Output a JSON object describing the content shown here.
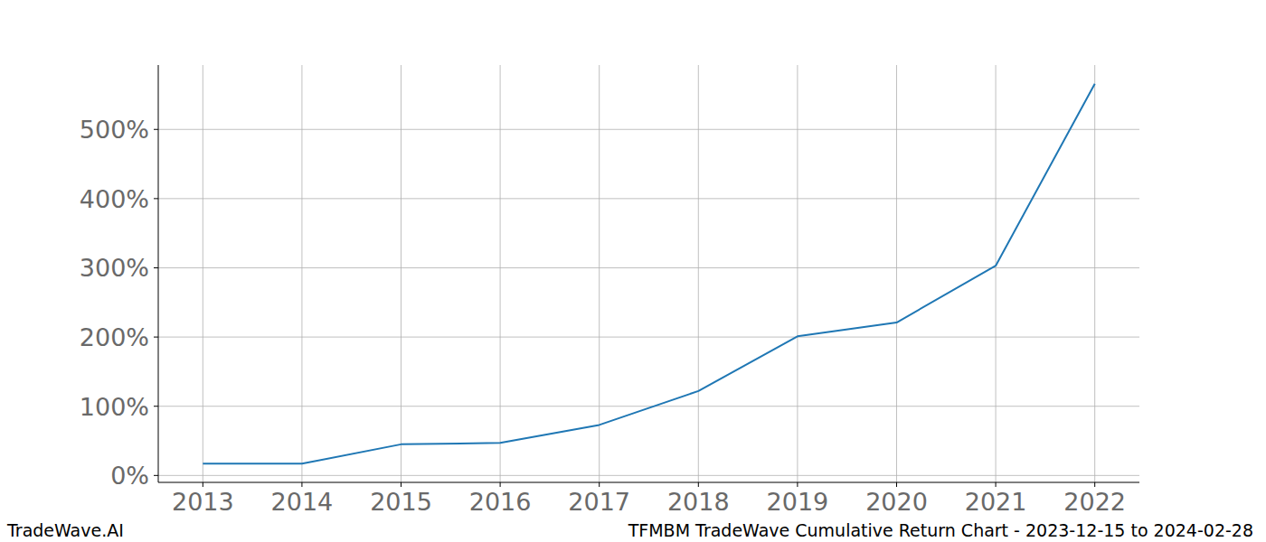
{
  "chart_data": {
    "type": "line",
    "title": "TFMBM TradeWave Cumulative Return Chart - 2023-12-15 to 2024-02-28",
    "watermark": "TradeWave.AI",
    "x": [
      2013,
      2014,
      2015,
      2016,
      2017,
      2018,
      2019,
      2020,
      2021,
      2022
    ],
    "series": [
      {
        "name": "TFMBM",
        "color": "#1f77b4",
        "values": [
          17,
          17,
          45,
          47,
          73,
          122,
          201,
          221,
          303,
          566
        ]
      }
    ],
    "xlim": [
      2012.55,
      2022.45
    ],
    "xticks": [
      2013,
      2014,
      2015,
      2016,
      2017,
      2018,
      2019,
      2020,
      2021,
      2022
    ],
    "ylim": [
      -10,
      593
    ],
    "yticks": [
      {
        "value": 0,
        "label": "0%"
      },
      {
        "value": 100,
        "label": "100%"
      },
      {
        "value": 200,
        "label": "200%"
      },
      {
        "value": 300,
        "label": "300%"
      },
      {
        "value": 400,
        "label": "400%"
      },
      {
        "value": 500,
        "label": "500%"
      }
    ],
    "grid": true
  }
}
